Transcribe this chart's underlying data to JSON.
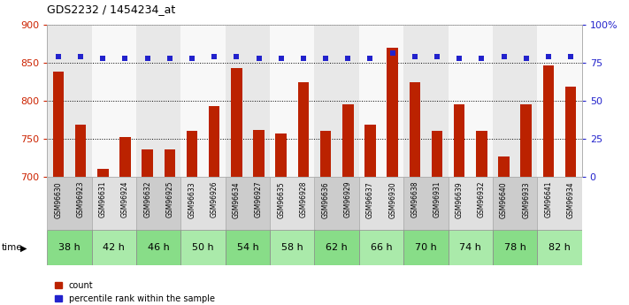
{
  "title": "GDS2232 / 1454234_at",
  "samples": [
    "GSM96630",
    "GSM96923",
    "GSM96631",
    "GSM96924",
    "GSM96632",
    "GSM96925",
    "GSM96633",
    "GSM96926",
    "GSM96634",
    "GSM96927",
    "GSM96635",
    "GSM96928",
    "GSM96636",
    "GSM96929",
    "GSM96637",
    "GSM96930",
    "GSM96638",
    "GSM96931",
    "GSM96639",
    "GSM96932",
    "GSM96640",
    "GSM96933",
    "GSM96641",
    "GSM96934"
  ],
  "time_labels": [
    "38 h",
    "42 h",
    "46 h",
    "50 h",
    "54 h",
    "58 h",
    "62 h",
    "66 h",
    "70 h",
    "74 h",
    "78 h",
    "82 h"
  ],
  "count_values": [
    838,
    768,
    710,
    752,
    736,
    736,
    760,
    793,
    843,
    761,
    757,
    824,
    760,
    795,
    768,
    869,
    824,
    760,
    795,
    760,
    727,
    795,
    846,
    818
  ],
  "percentile_values": [
    79,
    79,
    78,
    78,
    78,
    78,
    78,
    79,
    79,
    78,
    78,
    78,
    78,
    78,
    78,
    81,
    79,
    79,
    78,
    78,
    79,
    78,
    79,
    79
  ],
  "ylim_left": [
    700,
    900
  ],
  "ylim_right": [
    0,
    100
  ],
  "yticks_left": [
    700,
    750,
    800,
    850,
    900
  ],
  "yticks_right": [
    0,
    25,
    50,
    75,
    100
  ],
  "ytick_labels_right": [
    "0",
    "25",
    "50",
    "75",
    "100%"
  ],
  "bar_color": "#bb2200",
  "dot_color": "#2222cc",
  "grid_color": "#000000",
  "bg_colors_even": "#e8e8e8",
  "bg_colors_odd": "#f8f8f8",
  "time_bg_even": "#88dd88",
  "time_bg_odd": "#aaeaaa",
  "sample_bg_even": "#cccccc",
  "sample_bg_odd": "#e0e0e0",
  "left_axis_color": "#cc2200",
  "right_axis_color": "#2222cc",
  "group_size": 2
}
